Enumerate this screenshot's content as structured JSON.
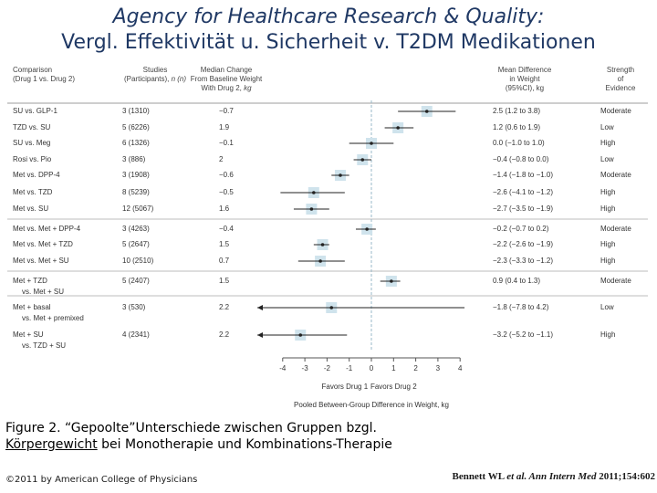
{
  "slide": {
    "title_line1": "Agency for Healthcare Research & Quality:",
    "title_line2": "Vergl. Effektivität u. Sicherheit v. T2DM Medikationen",
    "caption_prefix": "Figure 2. “Gepoolte”Unterschiede zwischen Gruppen bzgl. ",
    "caption_underlined": "Körpergewicht",
    "caption_suffix": " bei Monotherapie und Kombinations-Therapie",
    "copyright": "©2011 by American College of Physicians",
    "citation_authors": "Bennett WL ",
    "citation_etal": "et al. Ann Intern Med",
    "citation_ref": " 2011;154:602"
  },
  "headers": {
    "comparison_l1": "Comparison",
    "comparison_l2": "(Drug 1 vs. Drug 2)",
    "studies_l1": "Studies",
    "studies_l2a": "(Participants), ",
    "studies_l2b": "n (n)",
    "median_l1": "Median Change",
    "median_l2": "From Baseline Weight",
    "median_l3a": "With Drug 2, ",
    "median_l3b": "kg",
    "meandiff_l1": "Mean Difference",
    "meandiff_l2": "in Weight",
    "meandiff_l3": "(95%CI), kg",
    "strength_l1": "Strength",
    "strength_l2": "of",
    "strength_l3": "Evidence"
  },
  "rows": [
    {
      "comparison": "SU vs. GLP-1",
      "comparison2": "",
      "studies": "3 (1310)",
      "median": "−0.7",
      "ci_text": "2.5 (1.2 to 3.8)",
      "evidence": "Moderate"
    },
    {
      "comparison": "TZD vs. SU",
      "comparison2": "",
      "studies": "5 (6226)",
      "median": "1.9",
      "ci_text": "1.2 (0.6 to 1.9)",
      "evidence": "Low"
    },
    {
      "comparison": "SU vs. Meg",
      "comparison2": "",
      "studies": "6 (1326)",
      "median": "−0.1",
      "ci_text": "0.0 (−1.0 to 1.0)",
      "evidence": "High"
    },
    {
      "comparison": "Rosi vs. Pio",
      "comparison2": "",
      "studies": "3 (886)",
      "median": "2",
      "ci_text": "−0.4 (−0.8 to 0.0)",
      "evidence": "Low"
    },
    {
      "comparison": "Met vs. DPP-4",
      "comparison2": "",
      "studies": "3 (1908)",
      "median": "−0.6",
      "ci_text": "−1.4 (−1.8 to −1.0)",
      "evidence": "Moderate"
    },
    {
      "comparison": "Met vs. TZD",
      "comparison2": "",
      "studies": "8 (5239)",
      "median": "−0.5",
      "ci_text": "−2.6 (−4.1 to −1.2)",
      "evidence": "High"
    },
    {
      "comparison": "Met vs. SU",
      "comparison2": "",
      "studies": "12 (5067)",
      "median": "1.6",
      "ci_text": "−2.7 (−3.5 to −1.9)",
      "evidence": "High"
    },
    {
      "comparison": "Met vs. Met + DPP-4",
      "comparison2": "",
      "studies": "3 (4263)",
      "median": "−0.4",
      "ci_text": "−0.2 (−0.7 to 0.2)",
      "evidence": "Moderate"
    },
    {
      "comparison": "Met vs. Met + TZD",
      "comparison2": "",
      "studies": "5 (2647)",
      "median": "1.5",
      "ci_text": "−2.2 (−2.6 to −1.9)",
      "evidence": "High"
    },
    {
      "comparison": "Met vs. Met + SU",
      "comparison2": "",
      "studies": "10 (2510)",
      "median": "0.7",
      "ci_text": "−2.3 (−3.3 to −1.2)",
      "evidence": "High"
    },
    {
      "comparison": "Met + TZD",
      "comparison2": "vs. Met + SU",
      "studies": "5 (2407)",
      "median": "1.5",
      "ci_text": "0.9 (0.4 to 1.3)",
      "evidence": "Moderate"
    },
    {
      "comparison": "Met + basal",
      "comparison2": "vs. Met + premixed",
      "studies": "3 (530)",
      "median": "2.2",
      "ci_text": "−1.8 (−7.8 to 4.2)",
      "evidence": "Low"
    },
    {
      "comparison": "Met + SU",
      "comparison2": "vs. TZD + SU",
      "studies": "4 (2341)",
      "median": "2.2",
      "ci_text": "−3.2 (−5.2 to −1.1)",
      "evidence": "High"
    }
  ],
  "chart_data": {
    "type": "forest",
    "title": "Pooled Between-Group Difference in Weight, kg",
    "xlabel": "Pooled Between-Group Difference in Weight, kg",
    "xlim": [
      -4,
      4
    ],
    "ticks": [
      -4,
      -3,
      -2,
      -1,
      0,
      1,
      2,
      3,
      4
    ],
    "tick_labels": [
      "-4",
      "-3",
      "-2",
      "-1",
      "0",
      "1",
      "2",
      "3",
      "4"
    ],
    "favors_left": "Favors Drug 1",
    "favors_right": "Favors Drug 2",
    "series": [
      {
        "name": "SU vs. GLP-1",
        "estimate": 2.5,
        "lower": 1.2,
        "upper": 3.8
      },
      {
        "name": "TZD vs. SU",
        "estimate": 1.2,
        "lower": 0.6,
        "upper": 1.9
      },
      {
        "name": "SU vs. Meg",
        "estimate": 0.0,
        "lower": -1.0,
        "upper": 1.0
      },
      {
        "name": "Rosi vs. Pio",
        "estimate": -0.4,
        "lower": -0.8,
        "upper": 0.0
      },
      {
        "name": "Met vs. DPP-4",
        "estimate": -1.4,
        "lower": -1.8,
        "upper": -1.0
      },
      {
        "name": "Met vs. TZD",
        "estimate": -2.6,
        "lower": -4.1,
        "upper": -1.2
      },
      {
        "name": "Met vs. SU",
        "estimate": -2.7,
        "lower": -3.5,
        "upper": -1.9
      },
      {
        "name": "Met vs. Met + DPP-4",
        "estimate": -0.2,
        "lower": -0.7,
        "upper": 0.2
      },
      {
        "name": "Met vs. Met + TZD",
        "estimate": -2.2,
        "lower": -2.6,
        "upper": -1.9
      },
      {
        "name": "Met vs. Met + SU",
        "estimate": -2.3,
        "lower": -3.3,
        "upper": -1.2
      },
      {
        "name": "Met + TZD vs. Met + SU",
        "estimate": 0.9,
        "lower": 0.4,
        "upper": 1.3
      },
      {
        "name": "Met + basal vs. Met + premixed",
        "estimate": -1.8,
        "lower": -7.8,
        "upper": 4.2
      },
      {
        "name": "Met + SU vs. TZD + SU",
        "estimate": -3.2,
        "lower": -5.2,
        "upper": -1.1
      }
    ],
    "colors": {
      "marker_box": "#cfe3ec",
      "line": "#222222",
      "zero_line": "#9ab9c9"
    }
  }
}
